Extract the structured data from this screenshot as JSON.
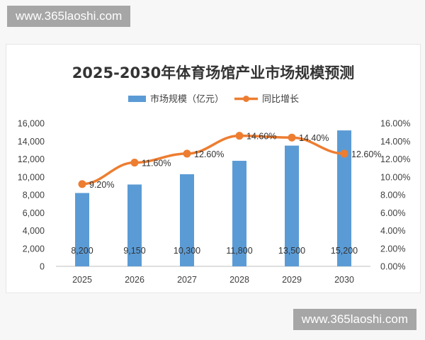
{
  "watermark": {
    "site": "www.365laoshi.com"
  },
  "chart_data": {
    "type": "bar",
    "title": "2025-2030年体育场馆产业市场规模预测",
    "categories": [
      "2025",
      "2026",
      "2027",
      "2028",
      "2029",
      "2030"
    ],
    "series": [
      {
        "name": "市场规模（亿元）",
        "type": "bar",
        "axis": "left",
        "color": "#5b9bd5",
        "values": [
          8200,
          9150,
          10300,
          11800,
          13500,
          15200
        ],
        "labels": [
          "8,200",
          "9,150",
          "10,300",
          "11,800",
          "13,500",
          "15,200"
        ]
      },
      {
        "name": "同比增长",
        "type": "line",
        "axis": "right",
        "color": "#ed7d31",
        "values": [
          9.2,
          11.6,
          12.6,
          14.6,
          14.4,
          12.6
        ],
        "labels": [
          "9.20%",
          "11.60%",
          "12.60%",
          "14.60%",
          "14.40%",
          "12.60%"
        ]
      }
    ],
    "y_left": {
      "ylim": [
        0,
        16000
      ],
      "ticks": [
        "0",
        "2,000",
        "4,000",
        "6,000",
        "8,000",
        "10,000",
        "12,000",
        "14,000",
        "16,000"
      ]
    },
    "y_right": {
      "ylim": [
        0,
        16
      ],
      "ticks": [
        "0.00%",
        "2.00%",
        "4.00%",
        "6.00%",
        "8.00%",
        "10.00%",
        "12.00%",
        "14.00%",
        "16.00%"
      ]
    },
    "legend": "top",
    "grid": false
  }
}
